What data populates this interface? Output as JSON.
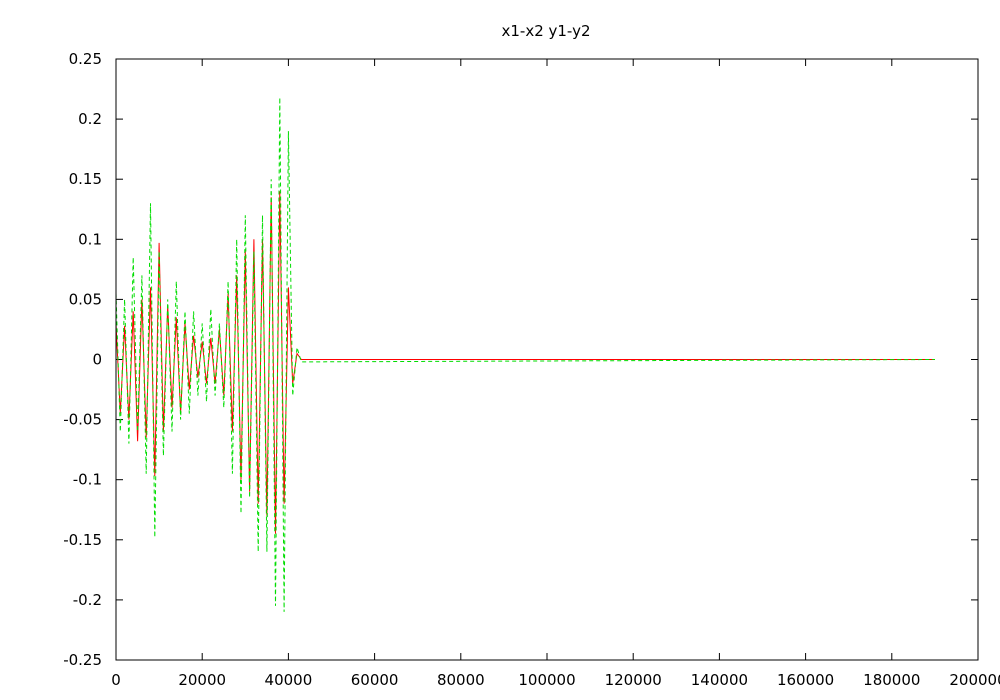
{
  "chart_data": {
    "type": "line",
    "title": "x1-x2  y1-y2",
    "xlabel": "",
    "ylabel": "",
    "xlim": [
      0,
      200000
    ],
    "ylim": [
      -0.25,
      0.25
    ],
    "x_ticks": [
      0,
      20000,
      40000,
      60000,
      80000,
      100000,
      120000,
      140000,
      160000,
      180000,
      200000
    ],
    "x_tick_labels": [
      "0",
      "20000",
      "40000",
      "60000",
      "80000",
      "100000",
      "120000",
      "140000",
      "160000",
      "180000",
      "200000"
    ],
    "y_ticks": [
      -0.25,
      -0.2,
      -0.15,
      -0.1,
      -0.05,
      0,
      0.05,
      0.1,
      0.15,
      0.2,
      0.25
    ],
    "y_tick_labels": [
      "-0.25",
      "-0.2",
      "-0.15",
      "-0.1",
      "-0.05",
      "0",
      "0.05",
      "0.1",
      "0.15",
      "0.2",
      "0.25"
    ],
    "grid": false,
    "legend": "none",
    "series": [
      {
        "color": "#ff0000",
        "dash": "solid",
        "x": [
          0,
          1000,
          2000,
          3000,
          4000,
          5000,
          6000,
          7000,
          8000,
          9000,
          10000,
          11000,
          12000,
          13000,
          14000,
          15000,
          16000,
          17000,
          18000,
          19000,
          20000,
          21000,
          22000,
          23000,
          24000,
          25000,
          26000,
          27000,
          28000,
          29000,
          30000,
          31000,
          32000,
          33000,
          34000,
          35000,
          36000,
          37000,
          38000,
          39000,
          40000,
          41000,
          42000,
          43000,
          190000
        ],
        "y": [
          0.03,
          -0.045,
          0.028,
          -0.05,
          0.04,
          -0.068,
          0.05,
          -0.065,
          0.06,
          -0.097,
          0.097,
          -0.06,
          0.045,
          -0.04,
          0.035,
          -0.045,
          0.03,
          -0.025,
          0.02,
          -0.015,
          0.015,
          -0.02,
          0.018,
          -0.02,
          0.025,
          -0.03,
          0.055,
          -0.06,
          0.07,
          -0.1,
          0.09,
          -0.11,
          0.1,
          -0.12,
          0.1,
          -0.13,
          0.135,
          -0.145,
          0.14,
          -0.12,
          0.06,
          -0.02,
          0.005,
          0.0,
          0.0
        ]
      },
      {
        "color": "#00dd00",
        "dash": "dashed",
        "x": [
          0,
          1000,
          2000,
          3000,
          4000,
          5000,
          6000,
          7000,
          8000,
          9000,
          10000,
          11000,
          12000,
          13000,
          14000,
          15000,
          16000,
          17000,
          18000,
          19000,
          20000,
          21000,
          22000,
          23000,
          24000,
          25000,
          26000,
          27000,
          28000,
          29000,
          30000,
          31000,
          32000,
          33000,
          34000,
          35000,
          36000,
          37000,
          38000,
          39000,
          40000,
          41000,
          42000,
          43000,
          190000
        ],
        "y": [
          0.055,
          -0.06,
          0.05,
          -0.07,
          0.085,
          -0.06,
          0.07,
          -0.095,
          0.13,
          -0.148,
          0.09,
          -0.08,
          0.05,
          -0.06,
          0.065,
          -0.05,
          0.04,
          -0.045,
          0.04,
          -0.03,
          0.03,
          -0.035,
          0.042,
          -0.03,
          0.03,
          -0.04,
          0.065,
          -0.095,
          0.1,
          -0.128,
          0.12,
          -0.115,
          0.09,
          -0.16,
          0.12,
          -0.16,
          0.15,
          -0.205,
          0.218,
          -0.21,
          0.19,
          -0.03,
          0.01,
          -0.002,
          0.0
        ]
      }
    ]
  }
}
